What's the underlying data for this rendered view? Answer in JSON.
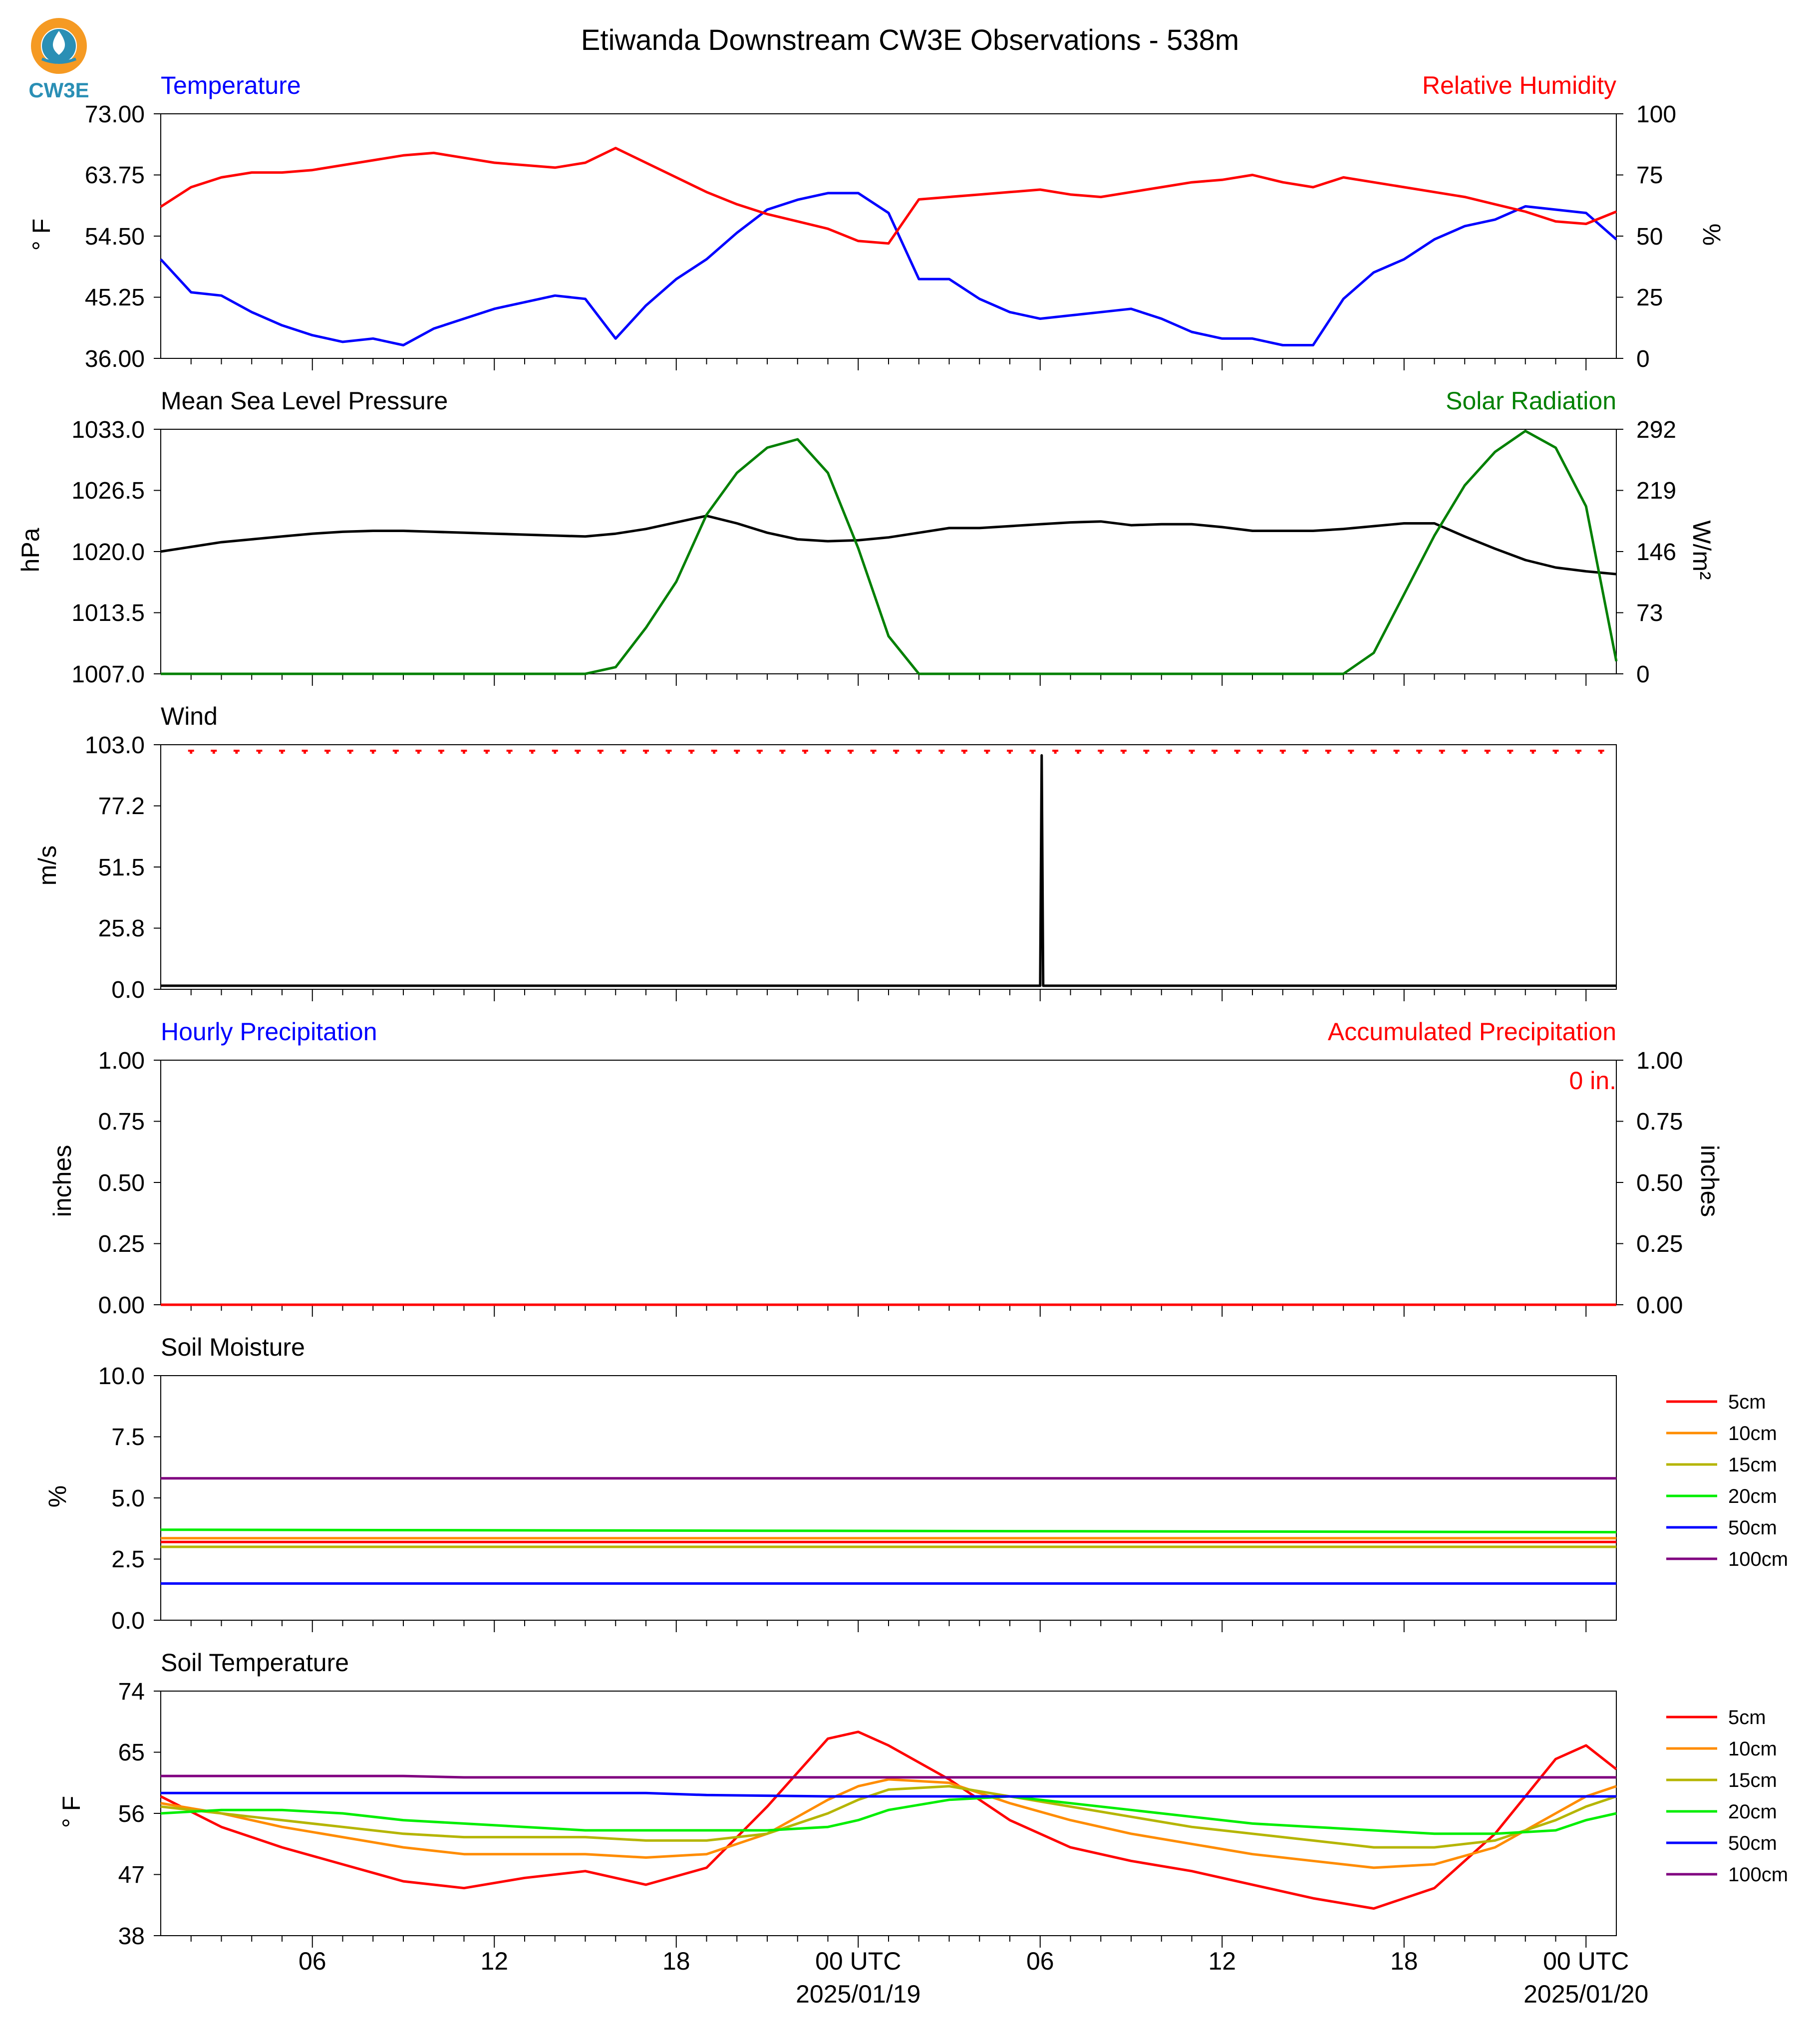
{
  "title": "Etiwanda Downstream CW3E Observations - 538m",
  "logo": {
    "text": "CW3E",
    "icon": "cw3e-logo-icon",
    "colors": {
      "orange": "#f59a23",
      "teal": "#2a8fb5"
    }
  },
  "x_axis": {
    "hours_span": [
      0,
      48
    ],
    "ticks": [
      {
        "h": 5,
        "label": "06",
        "date": ""
      },
      {
        "h": 11,
        "label": "12",
        "date": ""
      },
      {
        "h": 17,
        "label": "18",
        "date": ""
      },
      {
        "h": 23,
        "label": "00 UTC",
        "date": "2025/01/19"
      },
      {
        "h": 29,
        "label": "06",
        "date": ""
      },
      {
        "h": 35,
        "label": "12",
        "date": ""
      },
      {
        "h": 41,
        "label": "18",
        "date": ""
      },
      {
        "h": 47,
        "label": "00 UTC",
        "date": "2025/01/20"
      }
    ]
  },
  "panels": {
    "temperature": {
      "left_title": "Temperature",
      "left_color": "#0000ff",
      "right_title": "Relative Humidity",
      "right_color": "#ff0000",
      "ylabel": "° F",
      "ylabel_right": "%",
      "yticks": [
        "73.00",
        "63.75",
        "54.50",
        "45.25",
        "36.00"
      ],
      "yticks_right": [
        "100",
        "75",
        "50",
        "25",
        "0"
      ]
    },
    "pressure": {
      "left_title": "Mean Sea Level Pressure",
      "left_color": "#000000",
      "right_title": "Solar Radiation",
      "right_color": "#008000",
      "ylabel": "hPa",
      "ylabel_right": "W/m²",
      "yticks": [
        "1033.0",
        "1026.5",
        "1020.0",
        "1013.5",
        "1007.0"
      ],
      "yticks_right": [
        "292",
        "219",
        "146",
        "73",
        "0"
      ]
    },
    "wind": {
      "left_title": "Wind",
      "left_color": "#000000",
      "ylabel": "m/s",
      "yticks": [
        "103.0",
        "77.2",
        "51.5",
        "25.8",
        "0.0"
      ]
    },
    "precip": {
      "left_title": "Hourly Precipitation",
      "left_color": "#0000ff",
      "right_title": "Accumulated Precipitation",
      "right_color": "#ff0000",
      "ylabel": "inches",
      "ylabel_right": "inches",
      "yticks": [
        "1.00",
        "0.75",
        "0.50",
        "0.25",
        "0.00"
      ],
      "yticks_right": [
        "1.00",
        "0.75",
        "0.50",
        "0.25",
        "0.00"
      ],
      "annotation": "0 in."
    },
    "soil_moisture": {
      "left_title": "Soil Moisture",
      "left_color": "#000000",
      "ylabel": "%",
      "yticks": [
        "10.0",
        "7.5",
        "5.0",
        "2.5",
        "0.0"
      ]
    },
    "soil_temperature": {
      "left_title": "Soil Temperature",
      "left_color": "#000000",
      "ylabel": "° F",
      "yticks": [
        "74",
        "65",
        "56",
        "47",
        "38"
      ]
    }
  },
  "legend": [
    {
      "label": "5cm",
      "color": "#ff0000"
    },
    {
      "label": "10cm",
      "color": "#ff8c00"
    },
    {
      "label": "15cm",
      "color": "#b5b500"
    },
    {
      "label": "20cm",
      "color": "#00ee00"
    },
    {
      "label": "50cm",
      "color": "#0000ff"
    },
    {
      "label": "100cm",
      "color": "#800080"
    }
  ],
  "chart_data": [
    {
      "type": "line",
      "title": "Temperature",
      "xlabel": "",
      "ylabel": "° F",
      "ylim": [
        36,
        73
      ],
      "x_hours": [
        0,
        1,
        2,
        3,
        4,
        5,
        6,
        7,
        8,
        9,
        10,
        11,
        12,
        13,
        14,
        15,
        16,
        17,
        18,
        19,
        20,
        21,
        22,
        23,
        24,
        25,
        26,
        27,
        28,
        29,
        30,
        31,
        32,
        33,
        34,
        35,
        36,
        37,
        38,
        39,
        40,
        41,
        42,
        43,
        44,
        45,
        46,
        47,
        48
      ],
      "series": [
        {
          "name": "Temperature",
          "color": "#0000ff",
          "axis": "left",
          "values": [
            51,
            46,
            45.5,
            43,
            41,
            39.5,
            38.5,
            39,
            38,
            40.5,
            42,
            43.5,
            44.5,
            45.5,
            45,
            39,
            44,
            48,
            51,
            55,
            58.5,
            60,
            61,
            61,
            58,
            48,
            48,
            45,
            43,
            42,
            42.5,
            43,
            43.5,
            42,
            40,
            39,
            39,
            38,
            38,
            45,
            49,
            51,
            54,
            56,
            57,
            59,
            58.5,
            58,
            54
          ]
        },
        {
          "name": "Relative Humidity",
          "color": "#ff0000",
          "axis": "right",
          "values": [
            62,
            70,
            74,
            76,
            76,
            77,
            79,
            81,
            83,
            84,
            82,
            80,
            79,
            78,
            80,
            86,
            80,
            74,
            68,
            63,
            59,
            56,
            53,
            48,
            47,
            65,
            66,
            67,
            68,
            69,
            67,
            66,
            68,
            70,
            72,
            73,
            75,
            72,
            70,
            74,
            72,
            70,
            68,
            66,
            63,
            60,
            56,
            55,
            60
          ]
        }
      ]
    },
    {
      "type": "line",
      "title": "Mean Sea Level Pressure",
      "xlabel": "",
      "ylabel": "hPa",
      "ylim": [
        1007,
        1033
      ],
      "x_hours": [
        0,
        1,
        2,
        3,
        4,
        5,
        6,
        7,
        8,
        9,
        10,
        11,
        12,
        13,
        14,
        15,
        16,
        17,
        18,
        19,
        20,
        21,
        22,
        23,
        24,
        25,
        26,
        27,
        28,
        29,
        30,
        31,
        32,
        33,
        34,
        35,
        36,
        37,
        38,
        39,
        40,
        41,
        42,
        43,
        44,
        45,
        46,
        47,
        48
      ],
      "series": [
        {
          "name": "Mean Sea Level Pressure",
          "color": "#000000",
          "axis": "left",
          "values": [
            1020,
            1020.5,
            1021,
            1021.3,
            1021.6,
            1021.9,
            1022.1,
            1022.2,
            1022.2,
            1022.1,
            1022.0,
            1021.9,
            1021.8,
            1021.7,
            1021.6,
            1021.9,
            1022.4,
            1023.1,
            1023.8,
            1023.0,
            1022.0,
            1021.3,
            1021.1,
            1021.2,
            1021.5,
            1022.0,
            1022.5,
            1022.5,
            1022.7,
            1022.9,
            1023.1,
            1023.2,
            1022.8,
            1022.9,
            1022.9,
            1022.6,
            1022.2,
            1022.2,
            1022.2,
            1022.4,
            1022.7,
            1023.0,
            1023.0,
            1021.6,
            1020.3,
            1019.1,
            1018.3,
            1017.9,
            1017.6
          ]
        },
        {
          "name": "Solar Radiation",
          "color": "#008000",
          "axis": "right",
          "values": [
            0,
            0,
            0,
            0,
            0,
            0,
            0,
            0,
            0,
            0,
            0,
            0,
            0,
            0,
            0,
            8,
            55,
            110,
            190,
            240,
            270,
            280,
            240,
            150,
            45,
            0,
            0,
            0,
            0,
            0,
            0,
            0,
            0,
            0,
            0,
            0,
            0,
            0,
            0,
            0,
            25,
            95,
            165,
            225,
            265,
            290,
            270,
            200,
            15
          ]
        }
      ]
    },
    {
      "type": "line",
      "title": "Wind",
      "xlabel": "",
      "ylabel": "m/s",
      "ylim": [
        0,
        103
      ],
      "x_hours": [
        0,
        6,
        12,
        18,
        24,
        29.0,
        29.05,
        29.1,
        30,
        36,
        42,
        48
      ],
      "series": [
        {
          "name": "Wind",
          "color": "#000000",
          "axis": "left",
          "values": [
            1.5,
            1.5,
            1.5,
            1.5,
            1.5,
            1.5,
            98.5,
            1.5,
            1.5,
            1.5,
            1.5,
            1.5
          ]
        }
      ]
    },
    {
      "type": "line",
      "title": "Hourly Precipitation",
      "xlabel": "",
      "ylabel": "inches",
      "ylim": [
        0,
        1
      ],
      "x_hours": [
        0,
        48
      ],
      "series": [
        {
          "name": "Accumulated Precipitation",
          "color": "#ff0000",
          "axis": "right",
          "values": [
            0,
            0
          ]
        }
      ]
    },
    {
      "type": "line",
      "title": "Soil Moisture",
      "xlabel": "",
      "ylabel": "%",
      "ylim": [
        0,
        10
      ],
      "x_hours": [
        0,
        48
      ],
      "series": [
        {
          "name": "5cm",
          "color": "#ff0000",
          "values": [
            3.2,
            3.2
          ]
        },
        {
          "name": "10cm",
          "color": "#ff8c00",
          "values": [
            3.35,
            3.35
          ]
        },
        {
          "name": "15cm",
          "color": "#b5b500",
          "values": [
            3.0,
            3.0
          ]
        },
        {
          "name": "20cm",
          "color": "#00ee00",
          "values": [
            3.7,
            3.6
          ]
        },
        {
          "name": "50cm",
          "color": "#0000ff",
          "values": [
            1.5,
            1.5
          ]
        },
        {
          "name": "100cm",
          "color": "#800080",
          "values": [
            5.8,
            5.8
          ]
        }
      ]
    },
    {
      "type": "line",
      "title": "Soil Temperature",
      "xlabel": "",
      "ylabel": "° F",
      "ylim": [
        38,
        74
      ],
      "x_hours": [
        0,
        2,
        4,
        6,
        8,
        10,
        12,
        14,
        16,
        18,
        20,
        22,
        23,
        24,
        26,
        28,
        30,
        32,
        34,
        36,
        38,
        40,
        42,
        44,
        46,
        47,
        48
      ],
      "series": [
        {
          "name": "5cm",
          "color": "#ff0000",
          "values": [
            58.5,
            54,
            51,
            48.5,
            46,
            45,
            46.5,
            47.5,
            45.5,
            48,
            57,
            67,
            68,
            66,
            61,
            55,
            51,
            49,
            47.5,
            45.5,
            43.5,
            42,
            45,
            53,
            64,
            66,
            62.5
          ]
        },
        {
          "name": "10cm",
          "color": "#ff8c00",
          "values": [
            57.5,
            56,
            54,
            52.5,
            51,
            50,
            50,
            50,
            49.5,
            50,
            53,
            58,
            60,
            61,
            60.5,
            57.5,
            55,
            53,
            51.5,
            50,
            49,
            48,
            48.5,
            51,
            56,
            58.5,
            60
          ]
        },
        {
          "name": "15cm",
          "color": "#b5b500",
          "values": [
            57,
            56,
            55,
            54,
            53,
            52.5,
            52.5,
            52.5,
            52,
            52,
            53,
            56,
            58,
            59.5,
            60,
            58.5,
            57,
            55.5,
            54,
            53,
            52,
            51,
            51,
            52,
            55,
            57,
            58.5
          ]
        },
        {
          "name": "20cm",
          "color": "#00ee00",
          "values": [
            56,
            56.5,
            56.5,
            56,
            55,
            54.5,
            54,
            53.5,
            53.5,
            53.5,
            53.5,
            54,
            55,
            56.5,
            58,
            58.5,
            57.5,
            56.5,
            55.5,
            54.5,
            54,
            53.5,
            53,
            53,
            53.5,
            55,
            56
          ]
        },
        {
          "name": "50cm",
          "color": "#0000ff",
          "values": [
            59,
            59,
            59,
            59,
            59,
            59,
            59,
            59,
            59,
            58.7,
            58.6,
            58.5,
            58.5,
            58.5,
            58.5,
            58.5,
            58.5,
            58.5,
            58.5,
            58.5,
            58.5,
            58.5,
            58.5,
            58.5,
            58.5,
            58.5,
            58.5
          ]
        },
        {
          "name": "100cm",
          "color": "#800080",
          "values": [
            61.5,
            61.5,
            61.5,
            61.5,
            61.5,
            61.3,
            61.3,
            61.3,
            61.3,
            61.3,
            61.3,
            61.3,
            61.3,
            61.3,
            61.3,
            61.3,
            61.3,
            61.3,
            61.3,
            61.3,
            61.3,
            61.3,
            61.3,
            61.3,
            61.3,
            61.3,
            61.3
          ]
        }
      ]
    }
  ]
}
